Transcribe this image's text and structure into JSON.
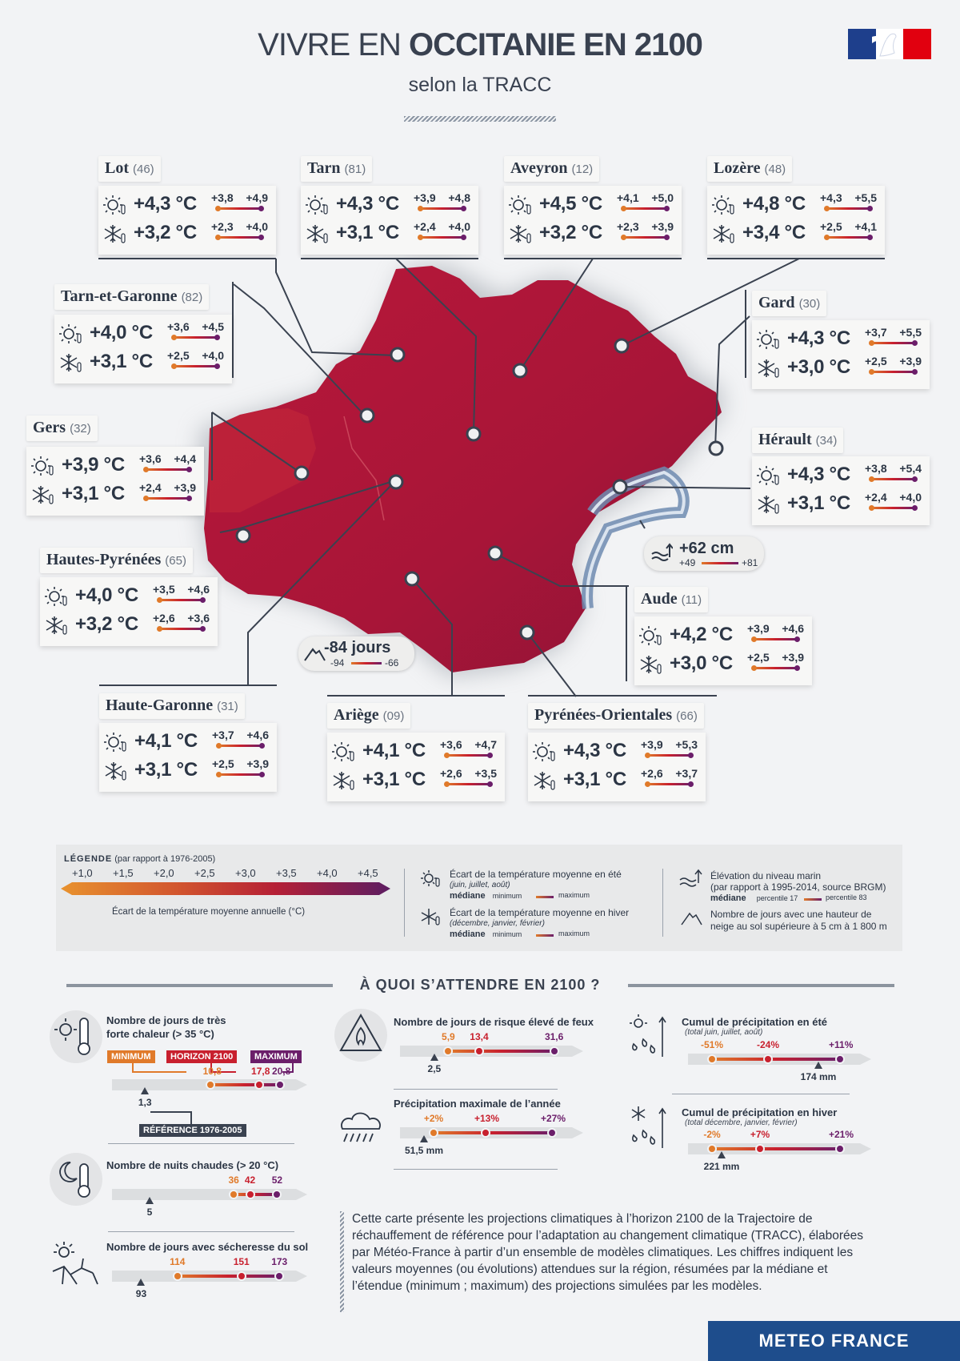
{
  "header": {
    "title_light": "VIVRE EN ",
    "title_bold": "OCCITANIE EN 2100",
    "subtitle": "selon la TRACC"
  },
  "departments": [
    {
      "id": "lot",
      "name": "Lot",
      "code": "(46)",
      "summer": {
        "val": "+4,3 °C",
        "min": "+3,8",
        "max": "+4,9"
      },
      "winter": {
        "val": "+3,2 °C",
        "min": "+2,3",
        "max": "+4,0"
      }
    },
    {
      "id": "tarn",
      "name": "Tarn",
      "code": "(81)",
      "summer": {
        "val": "+4,3 °C",
        "min": "+3,9",
        "max": "+4,8"
      },
      "winter": {
        "val": "+3,1 °C",
        "min": "+2,4",
        "max": "+4,0"
      }
    },
    {
      "id": "aveyron",
      "name": "Aveyron",
      "code": "(12)",
      "summer": {
        "val": "+4,5 °C",
        "min": "+4,1",
        "max": "+5,0"
      },
      "winter": {
        "val": "+3,2 °C",
        "min": "+2,3",
        "max": "+3,9"
      }
    },
    {
      "id": "lozere",
      "name": "Lozère",
      "code": "(48)",
      "summer": {
        "val": "+4,8 °C",
        "min": "+4,3",
        "max": "+5,5"
      },
      "winter": {
        "val": "+3,4 °C",
        "min": "+2,5",
        "max": "+4,1"
      }
    },
    {
      "id": "tarn-et-garonne",
      "name": "Tarn-et-Garonne",
      "code": "(82)",
      "summer": {
        "val": "+4,0 °C",
        "min": "+3,6",
        "max": "+4,5"
      },
      "winter": {
        "val": "+3,1 °C",
        "min": "+2,5",
        "max": "+4,0"
      }
    },
    {
      "id": "gard",
      "name": "Gard",
      "code": "(30)",
      "summer": {
        "val": "+4,3 °C",
        "min": "+3,7",
        "max": "+5,5"
      },
      "winter": {
        "val": "+3,0 °C",
        "min": "+2,5",
        "max": "+3,9"
      }
    },
    {
      "id": "gers",
      "name": "Gers",
      "code": "(32)",
      "summer": {
        "val": "+3,9 °C",
        "min": "+3,6",
        "max": "+4,4"
      },
      "winter": {
        "val": "+3,1 °C",
        "min": "+2,4",
        "max": "+3,9"
      }
    },
    {
      "id": "herault",
      "name": "Hérault",
      "code": "(34)",
      "summer": {
        "val": "+4,3 °C",
        "min": "+3,8",
        "max": "+5,4"
      },
      "winter": {
        "val": "+3,1 °C",
        "min": "+2,4",
        "max": "+4,0"
      }
    },
    {
      "id": "hautes-pyrenees",
      "name": "Hautes-Pyrénées",
      "code": "(65)",
      "summer": {
        "val": "+4,0 °C",
        "min": "+3,5",
        "max": "+4,6"
      },
      "winter": {
        "val": "+3,2 °C",
        "min": "+2,6",
        "max": "+3,6"
      }
    },
    {
      "id": "aude",
      "name": "Aude",
      "code": "(11)",
      "summer": {
        "val": "+4,2 °C",
        "min": "+3,9",
        "max": "+4,6"
      },
      "winter": {
        "val": "+3,0 °C",
        "min": "+2,5",
        "max": "+3,9"
      }
    },
    {
      "id": "haute-garonne",
      "name": "Haute-Garonne",
      "code": "(31)",
      "summer": {
        "val": "+4,1 °C",
        "min": "+3,7",
        "max": "+4,6"
      },
      "winter": {
        "val": "+3,1 °C",
        "min": "+2,5",
        "max": "+3,9"
      }
    },
    {
      "id": "ariege",
      "name": "Ariège",
      "code": "(09)",
      "summer": {
        "val": "+4,1 °C",
        "min": "+3,6",
        "max": "+4,7"
      },
      "winter": {
        "val": "+3,1 °C",
        "min": "+2,6",
        "max": "+3,5"
      }
    },
    {
      "id": "pyrenees-orientales",
      "name": "Pyrénées-Orientales",
      "code": "(66)",
      "summer": {
        "val": "+4,3 °C",
        "min": "+3,9",
        "max": "+5,3"
      },
      "winter": {
        "val": "+3,1 °C",
        "min": "+2,6",
        "max": "+3,7"
      }
    }
  ],
  "sea_badge": {
    "value": "+62 cm",
    "min": "+49",
    "max": "+81"
  },
  "snow_badge": {
    "value": "-84 jours",
    "min": "-94",
    "max": "-66"
  },
  "legend": {
    "title": "LÉGENDE",
    "title_note": "(par rapport à 1976-2005)",
    "scale": [
      "+1,0",
      "+1,5",
      "+2,0",
      "+2,5",
      "+3,0",
      "+3,5",
      "+4,0",
      "+4,5"
    ],
    "scale_label": "Écart de la température moyenne annuelle (°C)",
    "summer_title": "Écart de la température moyenne en été",
    "summer_sub": "(juin, juillet, août)",
    "winter_title": "Écart de la température moyenne en hiver",
    "winter_sub": "(décembre, janvier, février)",
    "mediane": "médiane",
    "minimum": "minimum",
    "maximum": "maximum",
    "sea_title": "Élévation du niveau marin",
    "sea_sub": "(par rapport à 1995-2014, source BRGM)",
    "p17": "percentile 17",
    "p83": "percentile 83",
    "snow_title": "Nombre de jours avec une hauteur de",
    "snow_title2": "neige au sol supérieure à 5 cm à 1 800 m"
  },
  "section": {
    "title": "À QUOI S’ATTENDRE EN 2100 ?"
  },
  "indicators": {
    "heat": {
      "title1": "Nombre de jours de très",
      "title2": "forte chaleur (> 35 °C)",
      "tag_min": "MINIMUM",
      "tag_hor": "HORIZON 2100",
      "tag_max": "MAXIMUM",
      "min": "10,8",
      "med": "17,8",
      "max": "20,8",
      "ref": "1,3",
      "ref_tag": "RÉFÉRENCE 1976-2005",
      "v_ref": 1.3,
      "v_min": 10.8,
      "v_med": 17.8,
      "v_max": 20.8
    },
    "nights": {
      "title": "Nombre de nuits chaudes (> 20 °C)",
      "min": "36",
      "med": "42",
      "max": "52",
      "ref": "5",
      "v_ref": 5,
      "v_min": 36,
      "v_med": 42,
      "v_max": 52
    },
    "drought": {
      "title": "Nombre de jours avec sécheresse du sol",
      "min": "114",
      "med": "151",
      "max": "173",
      "ref": "93",
      "v_ref": 93,
      "v_min": 114,
      "v_med": 151,
      "v_max": 173
    },
    "fire": {
      "title": "Nombre de jours de risque élevé de feux",
      "min": "5,9",
      "med": "13,4",
      "max": "31,6",
      "ref": "2,5",
      "v_ref": 2.5,
      "v_min": 5.9,
      "v_med": 13.4,
      "v_max": 31.6
    },
    "rainmax": {
      "title": "Précipitation maximale de l’année",
      "min": "+2%",
      "med": "+13%",
      "max": "+27%",
      "ref": "51,5 mm"
    },
    "rain_summer": {
      "title": "Cumul de précipitation en été",
      "sub": "(total juin, juillet, août)",
      "min": "-51%",
      "med": "-24%",
      "max": "+11%",
      "ref": "174 mm"
    },
    "rain_winter": {
      "title": "Cumul de précipitation en hiver",
      "sub": "(total décembre, janvier, février)",
      "min": "-2%",
      "med": "+7%",
      "max": "+21%",
      "ref": "221 mm"
    }
  },
  "description": "Cette carte présente les projections climatiques à l’horizon 2100 de la Trajectoire de réchauffement de référence pour l’adaptation au changement climatique (TRACC), élaborées par Météo-France à partir d’un ensemble de modèles climatiques. Les chiffres indiquent les valeurs moyennes (ou évolutions) attendues sur la région, résumées par la médiane et l’étendue (minimum ; maximum) des projections simulées par les modèles.",
  "footer": {
    "brand": "METEO FRANCE"
  },
  "colors": {
    "orange": "#e07a2a",
    "red": "#c8202e",
    "purple": "#6b1e6a",
    "map": "#b0193a",
    "navy": "#1e4d8c"
  }
}
